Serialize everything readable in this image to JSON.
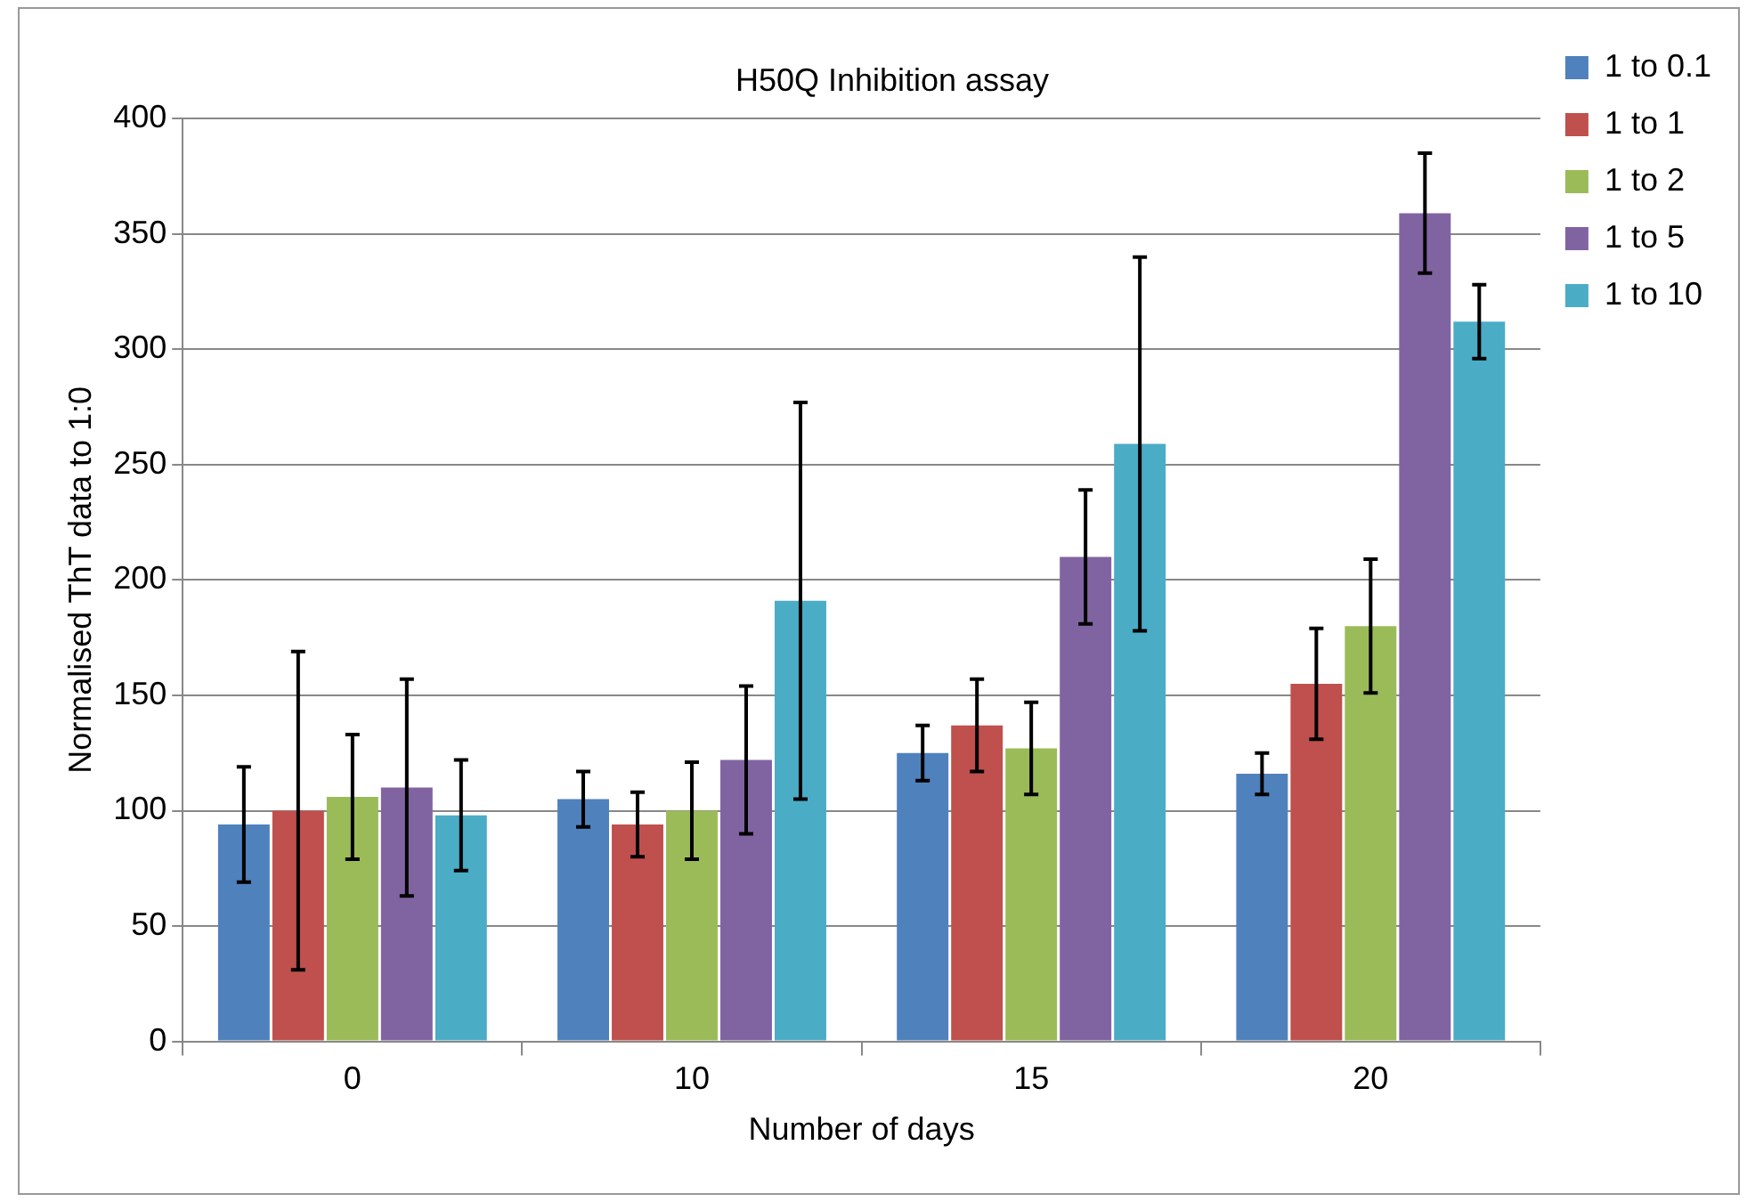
{
  "chart_data": {
    "type": "bar",
    "title": "H50Q Inhibition assay",
    "xlabel": "Number of days",
    "ylabel": "Normalised ThT data to 1:0",
    "categories": [
      "0",
      "10",
      "15",
      "20"
    ],
    "series": [
      {
        "name": "1 to 0.1",
        "color": "#4f81bd",
        "values": [
          94,
          105,
          125,
          116
        ],
        "errors": [
          25,
          12,
          12,
          9
        ]
      },
      {
        "name": "1 to 1",
        "color": "#c0504d",
        "values": [
          100,
          94,
          137,
          155
        ],
        "errors": [
          69,
          14,
          20,
          24
        ]
      },
      {
        "name": "1 to 2",
        "color": "#9bbb59",
        "values": [
          106,
          100,
          127,
          180
        ],
        "errors": [
          27,
          21,
          20,
          29
        ]
      },
      {
        "name": "1 to 5",
        "color": "#8064a2",
        "values": [
          110,
          122,
          210,
          359
        ],
        "errors": [
          47,
          32,
          29,
          26
        ]
      },
      {
        "name": "1 to 10",
        "color": "#4bacc6",
        "values": [
          98,
          191,
          259,
          312
        ],
        "errors": [
          24,
          86,
          81,
          16
        ]
      }
    ],
    "ylim": [
      0,
      400
    ],
    "yticks": [
      0,
      50,
      100,
      150,
      200,
      250,
      300,
      350,
      400
    ],
    "grid": "y",
    "legend": "top right"
  }
}
